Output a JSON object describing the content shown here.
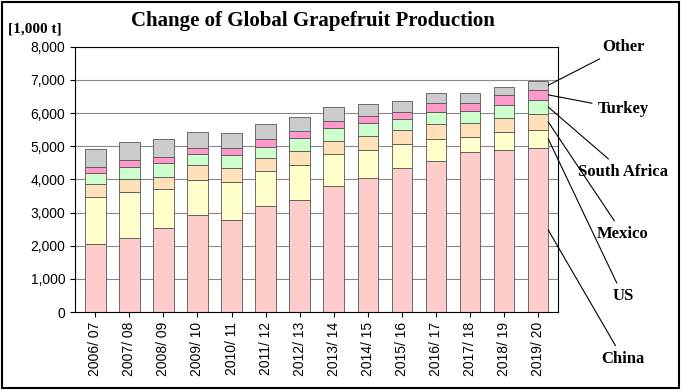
{
  "chart_data": {
    "type": "bar",
    "stacked": true,
    "title": "Change of Global Grapefruit Production",
    "y_label": "[1,000 t]",
    "categories": [
      "2006/ 07",
      "2007/ 08",
      "2008/ 09",
      "2009/ 10",
      "2010/ 11",
      "2011/ 12",
      "2012/ 13",
      "2013/ 14",
      "2014/ 15",
      "2015/ 16",
      "2016/ 17",
      "2017/ 18",
      "2018/ 19",
      "2019/ 20"
    ],
    "series": [
      {
        "name": "China",
        "color": "#ffcccc",
        "values": [
          2050,
          2220,
          2540,
          2920,
          2780,
          3200,
          3370,
          3800,
          4030,
          4350,
          4570,
          4820,
          4900,
          4950
        ]
      },
      {
        "name": "US",
        "color": "#ffffcc",
        "values": [
          1430,
          1400,
          1160,
          1070,
          1150,
          1050,
          1050,
          960,
          870,
          710,
          650,
          450,
          540,
          550
        ]
      },
      {
        "name": "Mexico",
        "color": "#ffe0b8",
        "values": [
          370,
          400,
          380,
          430,
          400,
          410,
          430,
          410,
          410,
          420,
          460,
          440,
          420,
          470
        ]
      },
      {
        "name": "South Africa",
        "color": "#ccffcc",
        "values": [
          350,
          360,
          400,
          360,
          410,
          330,
          390,
          380,
          380,
          340,
          360,
          360,
          390,
          430
        ]
      },
      {
        "name": "Turkey",
        "color": "#ff99cc",
        "values": [
          180,
          220,
          200,
          180,
          210,
          220,
          210,
          220,
          230,
          210,
          260,
          230,
          290,
          300
        ]
      },
      {
        "name": "Other",
        "color": "#cccccc",
        "values": [
          540,
          530,
          550,
          460,
          440,
          460,
          430,
          400,
          360,
          350,
          300,
          320,
          260,
          280
        ]
      }
    ],
    "ylim": [
      0,
      8000
    ],
    "yticks": [
      0,
      {
        "value": 1000,
        "label": "1,000"
      },
      {
        "value": 2000,
        "label": "2,000"
      },
      {
        "value": 3000,
        "label": "3,000"
      },
      {
        "value": 4000,
        "label": "4,000"
      },
      {
        "value": 5000,
        "label": "5,000"
      },
      {
        "value": 6000,
        "label": "6,000"
      },
      {
        "value": 7000,
        "label": "7,000"
      },
      {
        "value": 8000,
        "label": "8,000"
      }
    ],
    "grid": true
  }
}
